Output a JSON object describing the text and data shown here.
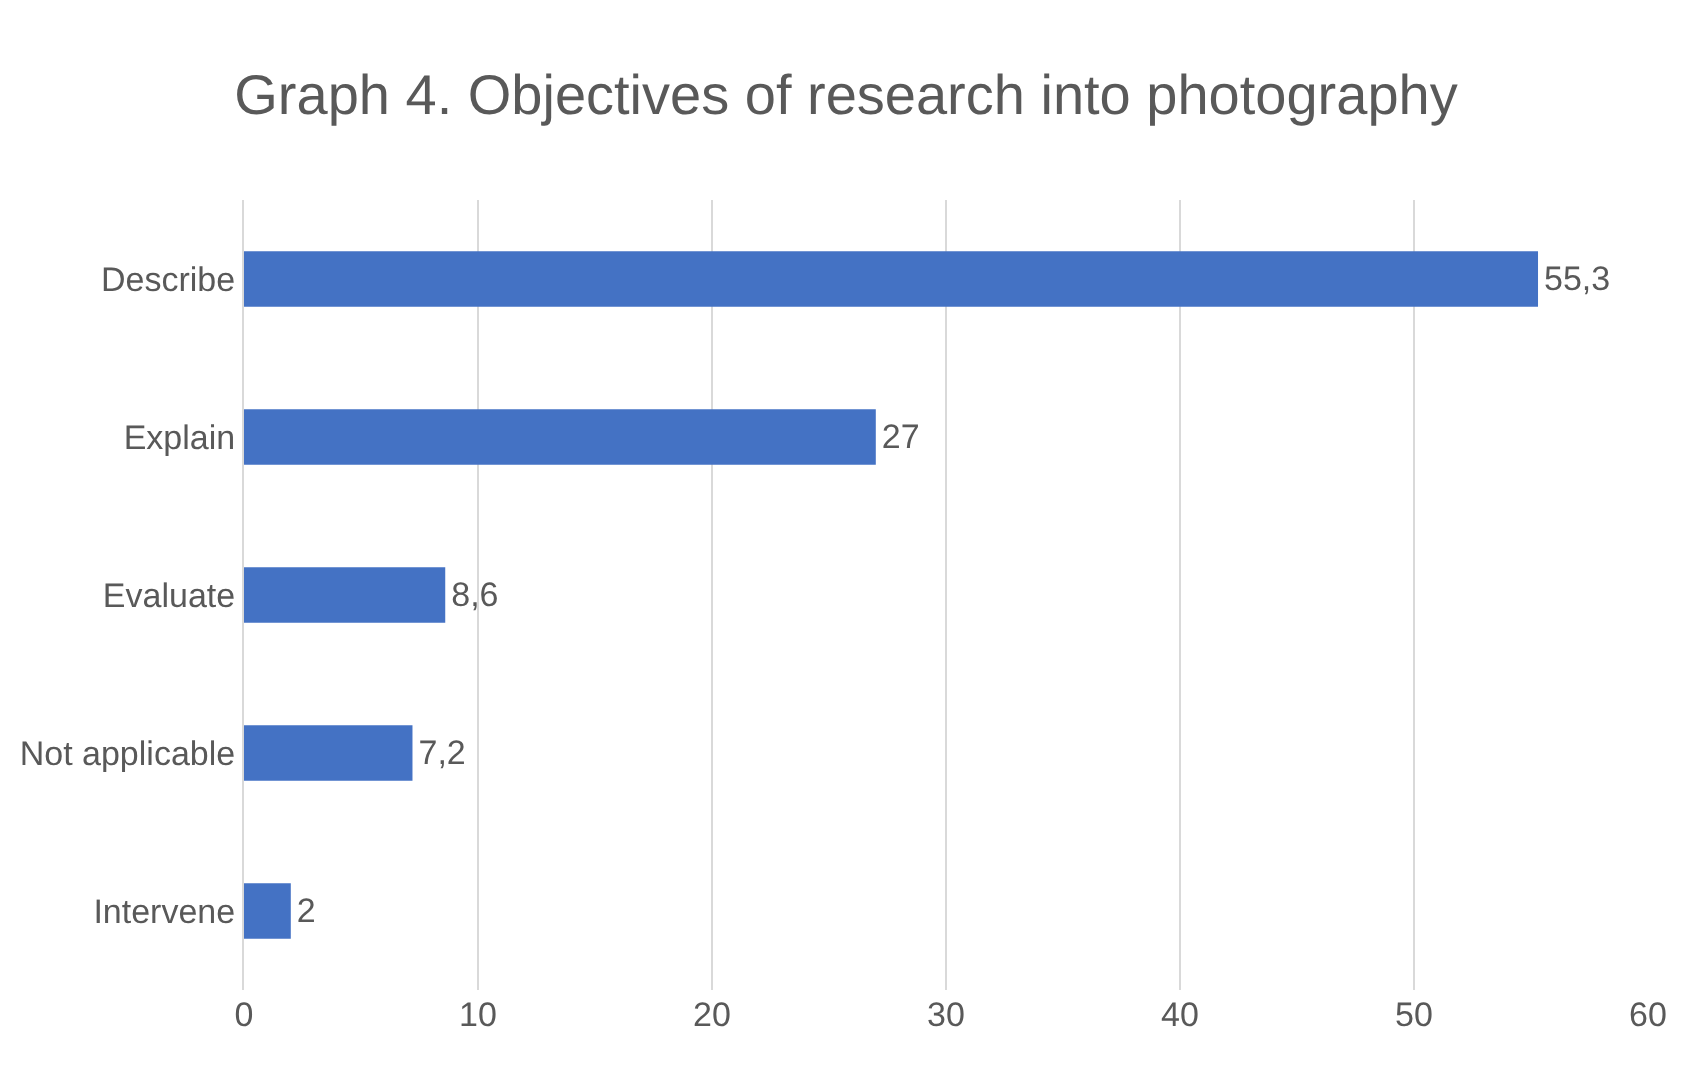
{
  "chart_data": {
    "type": "bar",
    "orientation": "horizontal",
    "title": "Graph 4. Objectives of research into photography",
    "categories": [
      "Describe",
      "Explain",
      "Evaluate",
      "Not applicable",
      "Intervene"
    ],
    "values": [
      55.3,
      27,
      8.6,
      7.2,
      2
    ],
    "value_labels": [
      "55,3",
      "27",
      "8,6",
      "7,2",
      "2"
    ],
    "color": "#4472c4",
    "xlim": [
      0,
      60
    ],
    "xticks": [
      0,
      10,
      20,
      30,
      40,
      50,
      60
    ],
    "grid": "x"
  }
}
